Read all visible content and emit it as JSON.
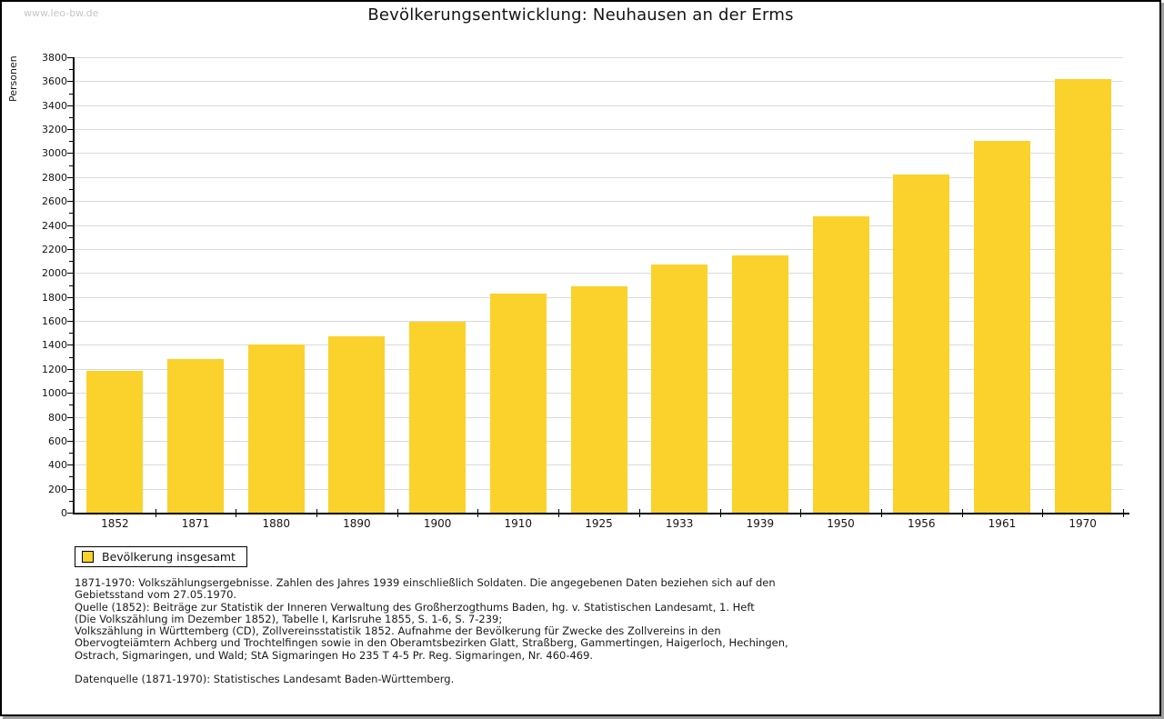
{
  "watermark": "www.leo-bw.de",
  "page_title": "Bevölkerungsentwicklung: Neuhausen an der Erms",
  "chart_data": {
    "type": "bar",
    "title": "Bevölkerungsentwicklung: Neuhausen an der Erms",
    "ylabel": "Personen",
    "xlabel": "",
    "categories": [
      "1852",
      "1871",
      "1880",
      "1890",
      "1900",
      "1910",
      "1925",
      "1933",
      "1939",
      "1950",
      "1956",
      "1961",
      "1970"
    ],
    "values": [
      1180,
      1285,
      1405,
      1475,
      1590,
      1830,
      1890,
      2070,
      2150,
      2470,
      2825,
      3100,
      3615
    ],
    "ylim": [
      0,
      3800
    ],
    "ytick_step": 200,
    "yminor_step": 100,
    "grid": true,
    "legend_position": "bottom-left",
    "colors": {
      "bar": "#FBD22B",
      "grid": "#DADADA",
      "axis": "#000000"
    }
  },
  "legend": {
    "label": "Bevölkerung insgesamt"
  },
  "footer": {
    "lines": [
      "1871-1970: Volkszählungsergebnisse. Zahlen des Jahres 1939 einschließlich Soldaten. Die angegebenen Daten beziehen sich auf den",
      "Gebietsstand vom 27.05.1970.",
      "Quelle (1852): Beiträge zur Statistik der Inneren Verwaltung des Großherzogthums Baden, hg. v. Statistischen Landesamt, 1. Heft",
      "(Die Volkszählung im Dezember 1852), Tabelle I, Karlsruhe 1855, S. 1-6, S. 7-239;",
      "Volkszählung in Württemberg (CD), Zollvereinsstatistik 1852. Aufnahme der Bevölkerung für Zwecke des Zollvereins in den",
      "Obervogteiämtern Achberg und Trochtelfingen sowie in den Oberamtsbezirken Glatt, Straßberg, Gammertingen, Haigerloch, Hechingen,",
      "Ostrach, Sigmaringen, und Wald; StA Sigmaringen Ho 235 T 4-5 Pr. Reg. Sigmaringen, Nr. 460-469."
    ],
    "datasource_line": "Datenquelle (1871-1970): Statistisches Landesamt Baden-Württemberg."
  }
}
